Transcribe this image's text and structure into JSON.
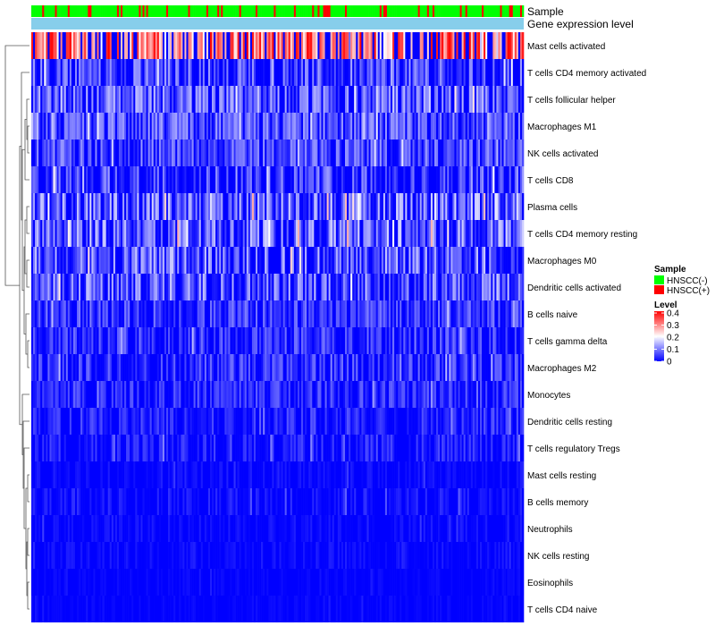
{
  "chart_data": {
    "type": "heatmap",
    "title": "",
    "annotation_tracks": [
      {
        "label": "Sample"
      },
      {
        "label": "Gene expression level"
      }
    ],
    "rows": [
      {
        "label": "Mast cells activated",
        "mean": 0.3,
        "spread": 0.1
      },
      {
        "label": "T cells CD4 memory activated",
        "mean": 0.06,
        "spread": 0.07
      },
      {
        "label": "T cells follicular helper",
        "mean": 0.09,
        "spread": 0.06
      },
      {
        "label": "Macrophages M1",
        "mean": 0.08,
        "spread": 0.05
      },
      {
        "label": "NK cells activated",
        "mean": 0.07,
        "spread": 0.05
      },
      {
        "label": "T cells CD8",
        "mean": 0.06,
        "spread": 0.07
      },
      {
        "label": "Plasma cells",
        "mean": 0.09,
        "spread": 0.09
      },
      {
        "label": "T cells CD4 memory resting",
        "mean": 0.09,
        "spread": 0.08
      },
      {
        "label": "Macrophages M0",
        "mean": 0.08,
        "spread": 0.08
      },
      {
        "label": "Dendritic cells activated",
        "mean": 0.08,
        "spread": 0.08
      },
      {
        "label": "B cells naive",
        "mean": 0.05,
        "spread": 0.05
      },
      {
        "label": "T cells gamma delta",
        "mean": 0.04,
        "spread": 0.05
      },
      {
        "label": "Macrophages M2",
        "mean": 0.04,
        "spread": 0.05
      },
      {
        "label": "Monocytes",
        "mean": 0.04,
        "spread": 0.04
      },
      {
        "label": "Dendritic cells resting",
        "mean": 0.03,
        "spread": 0.04
      },
      {
        "label": "T cells regulatory  Tregs",
        "mean": 0.02,
        "spread": 0.04
      },
      {
        "label": "Mast cells resting",
        "mean": 0.005,
        "spread": 0.02
      },
      {
        "label": "B cells memory",
        "mean": 0.01,
        "spread": 0.03
      },
      {
        "label": "Neutrophils",
        "mean": 0.005,
        "spread": 0.02
      },
      {
        "label": "NK cells resting",
        "mean": 0.005,
        "spread": 0.02
      },
      {
        "label": "Eosinophils",
        "mean": 0.002,
        "spread": 0.01
      },
      {
        "label": "T cells CD4 naive",
        "mean": 0.002,
        "spread": 0.01
      }
    ],
    "n_samples": 270,
    "sample_groups": [
      "HNSCC(-)",
      "HNSCC(+)"
    ],
    "fraction_hnscc_pos": 0.2,
    "value_range": [
      0,
      0.4
    ],
    "legends": {
      "sample": {
        "title": "Sample",
        "items": [
          {
            "label": "HNSCC(-)",
            "color": "#00ff00"
          },
          {
            "label": "HNSCC(+)",
            "color": "#ff0000"
          }
        ]
      },
      "level": {
        "title": "Level",
        "ticks": [
          "0.4",
          "0.3",
          "0.2",
          "0.1",
          "0"
        ]
      }
    },
    "dendrogram": "rows, left side",
    "legend_position": "right"
  },
  "colors": {
    "low": "#0000ff",
    "mid": "#ffffff",
    "high": "#ff0000",
    "expression_track": "#87ceeb"
  }
}
